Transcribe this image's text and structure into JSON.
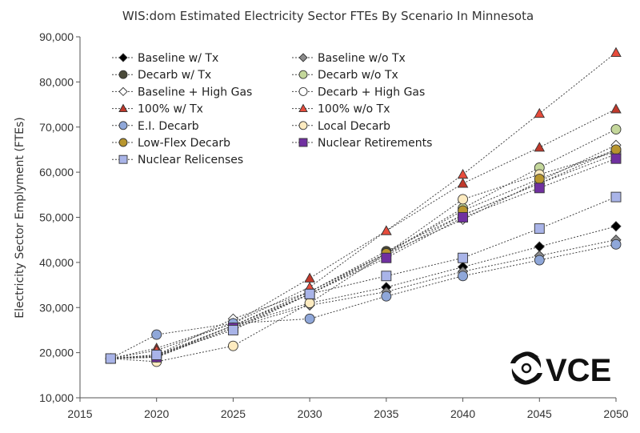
{
  "chart_data": {
    "type": "line",
    "title": "WIS:dom Estimated Electricity Sector FTEs By Scenario In Minnesota",
    "xlabel": "",
    "ylabel": "Electricity Sector Emplyment (FTEs)",
    "xlim": [
      2015,
      2050
    ],
    "ylim": [
      10000,
      90000
    ],
    "x_ticks": [
      2015,
      2020,
      2025,
      2030,
      2035,
      2040,
      2045,
      2050
    ],
    "x_tick_labels": [
      "2015",
      "2020",
      "2025",
      "2030",
      "2035",
      "2040",
      "2045",
      "2050"
    ],
    "y_ticks": [
      10000,
      20000,
      30000,
      40000,
      50000,
      60000,
      70000,
      80000,
      90000
    ],
    "y_tick_labels": [
      "10,000",
      "20,000",
      "30,000",
      "40,000",
      "50,000",
      "60,000",
      "70,000",
      "80,000",
      "90,000"
    ],
    "grid": false,
    "legend_position": "top-left",
    "x": [
      2017,
      2020,
      2025,
      2030,
      2035,
      2040,
      2045,
      2050
    ],
    "series": [
      {
        "name": "Baseline w/ Tx",
        "marker": "diamond",
        "fill": "#000000",
        "values": [
          18700,
          19500,
          26000,
          31000,
          34500,
          39000,
          43500,
          48000
        ]
      },
      {
        "name": "Baseline w/o Tx",
        "marker": "diamond",
        "fill": "#8c8c8c",
        "values": [
          18700,
          19000,
          25500,
          30500,
          33500,
          38000,
          41500,
          45000
        ]
      },
      {
        "name": "Decarb w/ Tx",
        "marker": "circle",
        "fill": "#4a4a3a",
        "values": [
          18700,
          19200,
          26000,
          33500,
          42500,
          50500,
          57500,
          65000
        ]
      },
      {
        "name": "Decarb w/o Tx",
        "marker": "circle",
        "fill": "#c4d79b",
        "values": [
          18700,
          19200,
          26000,
          33500,
          42000,
          52000,
          61000,
          69500
        ]
      },
      {
        "name": "Baseline + High Gas",
        "marker": "diamond",
        "fill": "#ffffff",
        "values": [
          18700,
          19500,
          27500,
          33500,
          42000,
          49500,
          58000,
          66000
        ]
      },
      {
        "name": "Decarb + High Gas",
        "marker": "circle",
        "fill": "#ffffff",
        "values": [
          18700,
          19000,
          26000,
          33000,
          41500,
          50500,
          57500,
          64000
        ]
      },
      {
        "name": "100% w/ Tx",
        "marker": "triangle",
        "fill": "#c0392b",
        "values": [
          18700,
          21000,
          26500,
          36500,
          47000,
          57500,
          65500,
          74000
        ]
      },
      {
        "name": "100% w/o Tx",
        "marker": "triangle",
        "fill": "#e74c3c",
        "values": [
          18700,
          20500,
          26500,
          34500,
          47000,
          59500,
          73000,
          86500
        ]
      },
      {
        "name": "E.I. Decarb",
        "marker": "circle",
        "fill": "#8fa7d9",
        "values": [
          18700,
          24000,
          26500,
          27500,
          32500,
          37000,
          40500,
          44000
        ]
      },
      {
        "name": "Local Decarb",
        "marker": "circle",
        "fill": "#fdebc0",
        "values": [
          18700,
          18000,
          21500,
          31000,
          42000,
          54000,
          59500,
          64500
        ]
      },
      {
        "name": "Low-Flex Decarb",
        "marker": "circle",
        "fill": "#b8962e",
        "values": [
          18700,
          19000,
          25500,
          33000,
          42000,
          51500,
          58500,
          65000
        ]
      },
      {
        "name": "Nuclear Retirements",
        "marker": "square",
        "fill": "#7030a0",
        "values": [
          18700,
          19000,
          25500,
          33000,
          41000,
          50000,
          56500,
          63000
        ]
      },
      {
        "name": "Nuclear Relicenses",
        "marker": "square",
        "fill": "#a9b4e8",
        "values": [
          18700,
          19500,
          25000,
          33000,
          37000,
          41000,
          47500,
          54500
        ]
      }
    ]
  },
  "logo": {
    "text": "VCE"
  }
}
